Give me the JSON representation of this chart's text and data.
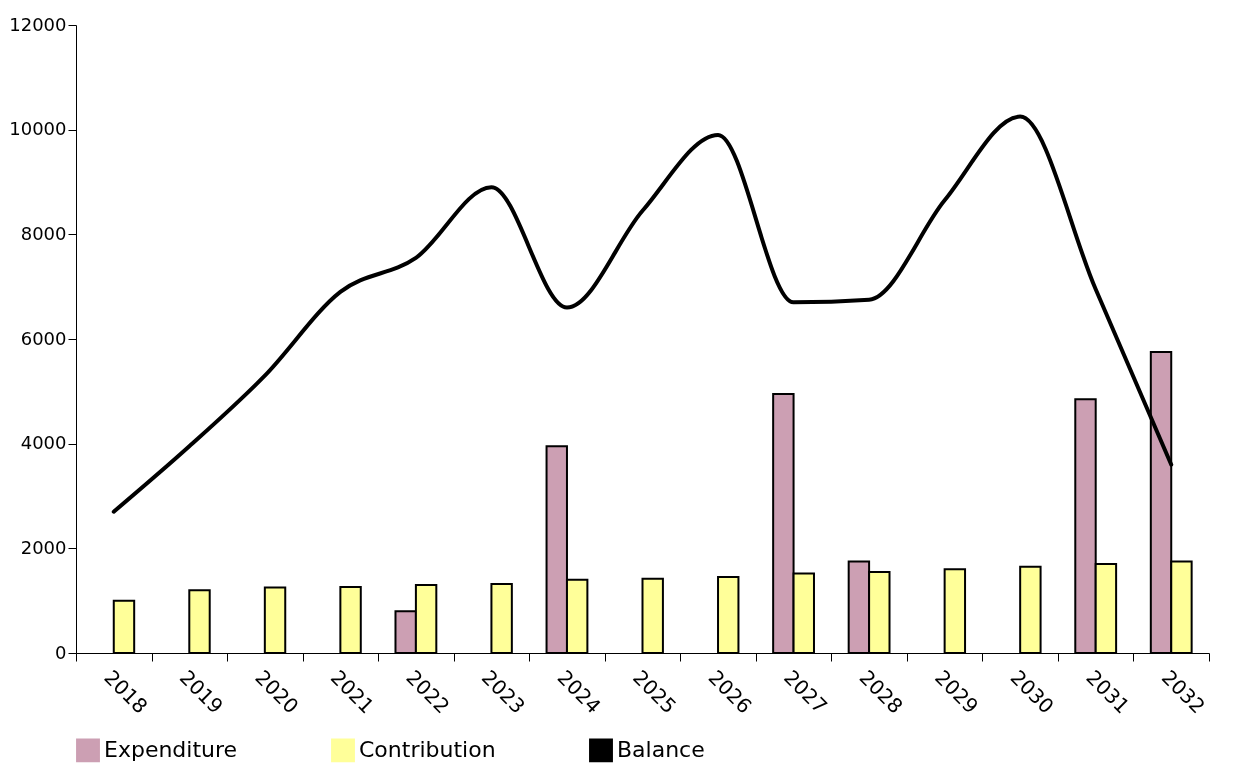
{
  "chart_data": {
    "type": "bar",
    "categories": [
      "2018",
      "2019",
      "2020",
      "2021",
      "2022",
      "2023",
      "2024",
      "2025",
      "2026",
      "2027",
      "2028",
      "2029",
      "2030",
      "2031",
      "2032"
    ],
    "series": [
      {
        "name": "Expenditure",
        "color": "#cc9fb3",
        "values": [
          null,
          null,
          null,
          null,
          800,
          null,
          3950,
          null,
          null,
          4950,
          1750,
          null,
          null,
          4850,
          5750
        ]
      },
      {
        "name": "Contribution",
        "color": "#ffff99",
        "values": [
          1000,
          1200,
          1250,
          1260,
          1300,
          1320,
          1400,
          1420,
          1450,
          1520,
          1550,
          1600,
          1650,
          1700,
          1750
        ]
      },
      {
        "name": "Balance",
        "type": "line",
        "color": "#000000",
        "values": [
          2700,
          3950,
          5300,
          6900,
          7550,
          8900,
          6600,
          8450,
          9900,
          6700,
          6750,
          8650,
          10250,
          6950,
          3600
        ]
      }
    ],
    "ylim": [
      0,
      12000
    ],
    "yticks": [
      0,
      2000,
      4000,
      6000,
      8000,
      10000,
      12000
    ],
    "grid": false,
    "legend": "bottom"
  }
}
